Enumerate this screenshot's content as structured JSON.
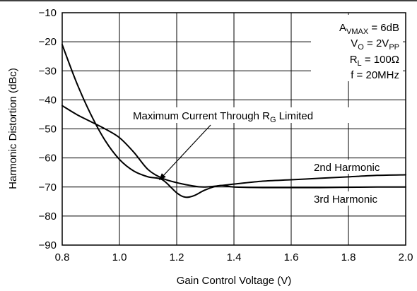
{
  "chart_data": {
    "type": "line",
    "xlabel": "Gain Control Voltage (V)",
    "ylabel": "Harmonic Distortion (dBc)",
    "xlim": [
      0.8,
      2.0
    ],
    "ylim": [
      -90,
      -10
    ],
    "x_ticks": [
      "0.8",
      "1.0",
      "1.2",
      "1.4",
      "1.6",
      "1.8",
      "2.0"
    ],
    "y_ticks": [
      "−10",
      "−20",
      "−30",
      "−40",
      "−50",
      "−60",
      "−70",
      "−80",
      "−90"
    ],
    "grid": true,
    "series": [
      {
        "name": "2nd Harmonic",
        "x": [
          0.8,
          0.85,
          0.9,
          0.95,
          1.0,
          1.05,
          1.1,
          1.15,
          1.2,
          1.25,
          1.3,
          1.4,
          1.5,
          1.6,
          1.7,
          1.8,
          1.9,
          2.0
        ],
        "y": [
          -42,
          -45,
          -47.5,
          -50,
          -53,
          -58,
          -64,
          -67,
          -68.5,
          -69.5,
          -70,
          -69,
          -68,
          -67.5,
          -67,
          -66.5,
          -66,
          -65.8
        ]
      },
      {
        "name": "3rd Harmonic",
        "x": [
          0.8,
          0.85,
          0.9,
          0.95,
          1.0,
          1.05,
          1.1,
          1.15,
          1.2,
          1.23,
          1.26,
          1.3,
          1.35,
          1.4,
          1.5,
          1.6,
          1.7,
          1.8,
          1.9,
          2.0
        ],
        "y": [
          -21,
          -34,
          -45,
          -54,
          -60.5,
          -64.5,
          -66.5,
          -67.5,
          -72,
          -73.5,
          -73,
          -71,
          -69.5,
          -70,
          -70.2,
          -70.2,
          -70.2,
          -70.1,
          -70,
          -70
        ]
      }
    ],
    "legend": {
      "line1_main": "A",
      "line1_sub": "VMAX",
      "line1_rest": " = 6dB",
      "line2_main": "V",
      "line2_sub": "O",
      "line2_mid": " = 2V",
      "line2_sub2": "PP",
      "line3_main": "R",
      "line3_sub": "L",
      "line3_rest": " = 100Ω",
      "line4": "f = 20MHz"
    },
    "annotation": {
      "text_main": "Maximum Current Through R",
      "text_sub": "G",
      "text_rest": " Limited",
      "arrow_to": [
        1.14,
        -67.5
      ]
    },
    "series_labels": {
      "second": "2nd Harmonic",
      "third": "3rd Harmonic"
    }
  }
}
